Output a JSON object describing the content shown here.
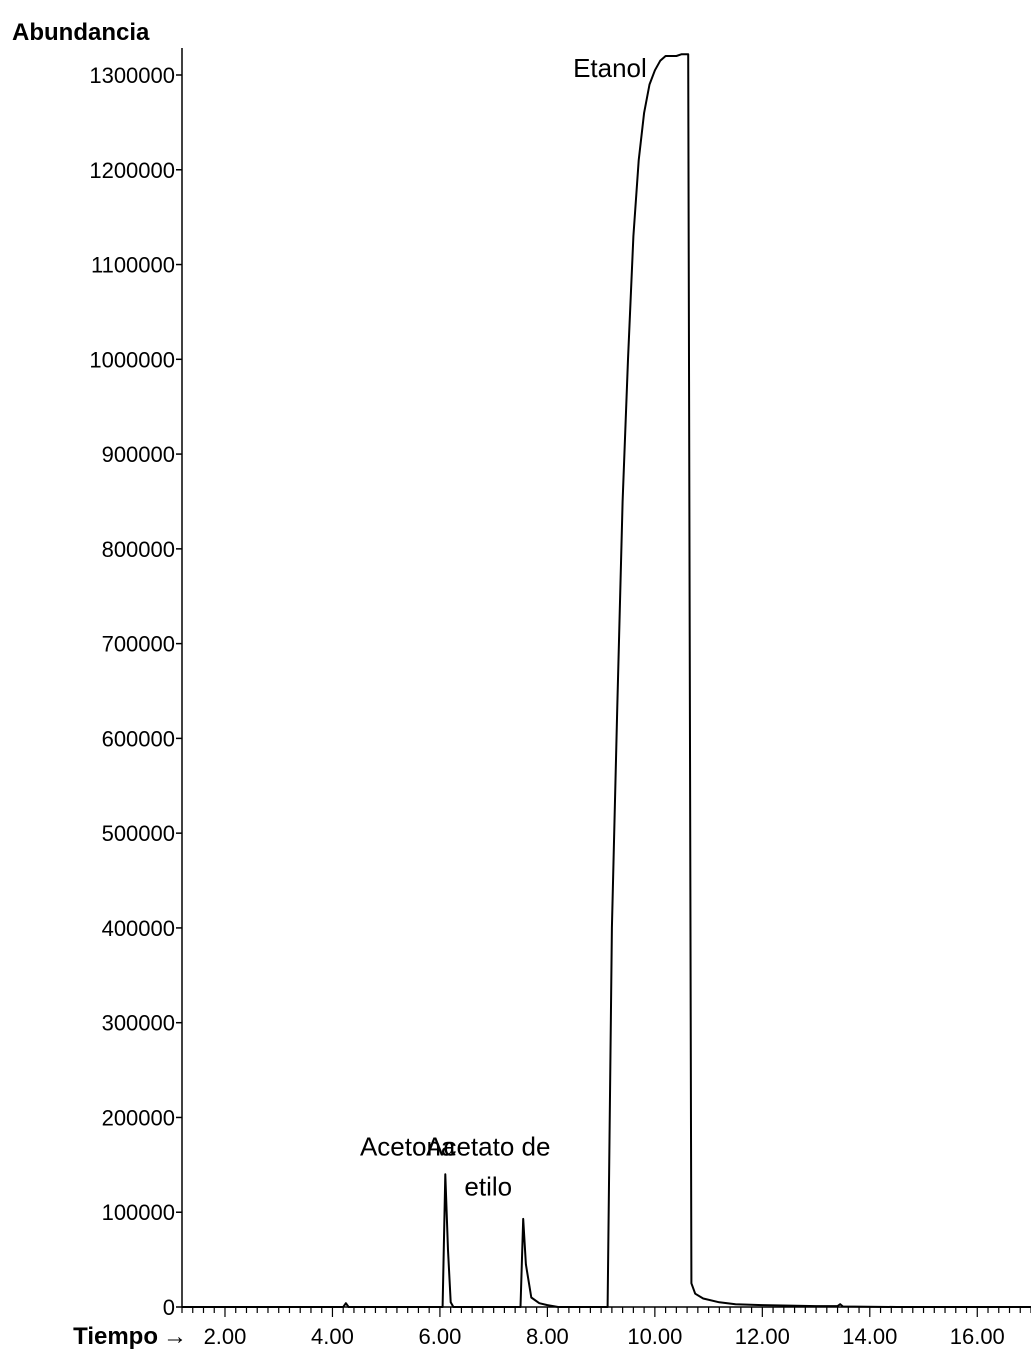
{
  "chart_data": {
    "type": "line",
    "ylabel": "Abundancia",
    "xlabel": "Tiempo",
    "xlabel_arrow": "→",
    "xlim": [
      1.2,
      17.0
    ],
    "ylim": [
      0,
      1300000
    ],
    "x_ticks": [
      2.0,
      4.0,
      6.0,
      8.0,
      10.0,
      12.0,
      14.0,
      16.0
    ],
    "x_tick_labels": [
      "2.00",
      "4.00",
      "6.00",
      "8.00",
      "10.00",
      "12.00",
      "14.00",
      "16.00"
    ],
    "y_ticks": [
      0,
      100000,
      200000,
      300000,
      400000,
      500000,
      600000,
      700000,
      800000,
      900000,
      1000000,
      1100000,
      1200000,
      1300000
    ],
    "y_tick_labels": [
      "0",
      "100000",
      "200000",
      "300000",
      "400000",
      "500000",
      "600000",
      "700000",
      "800000",
      "900000",
      "1000000",
      "1100000",
      "1200000",
      "1300000"
    ],
    "grid": false,
    "series": [
      {
        "color": "#000000",
        "x": [
          1.2,
          4.2,
          4.25,
          4.3,
          6.05,
          6.1,
          6.15,
          6.2,
          6.25,
          7.5,
          7.55,
          7.6,
          7.7,
          7.85,
          8.0,
          8.2,
          9.12,
          9.2,
          9.3,
          9.4,
          9.5,
          9.6,
          9.7,
          9.8,
          9.9,
          10.0,
          10.1,
          10.2,
          10.3,
          10.4,
          10.5,
          10.62,
          10.68,
          10.75,
          10.9,
          11.2,
          11.5,
          12.0,
          13.0,
          13.4,
          13.45,
          13.5,
          14.5,
          17.0
        ],
        "y": [
          0,
          0,
          4000,
          0,
          0,
          140000,
          60000,
          5000,
          0,
          0,
          93000,
          45000,
          10000,
          4000,
          2000,
          0,
          0,
          400000,
          630000,
          850000,
          1000000,
          1130000,
          1210000,
          1260000,
          1290000,
          1305000,
          1315000,
          1320000,
          1320000,
          1320000,
          1322000,
          1322000,
          25000,
          14000,
          9000,
          5000,
          3000,
          2000,
          1000,
          1000,
          3000,
          500,
          0,
          0
        ]
      }
    ],
    "annotations": [
      {
        "lines": [
          "Etanol"
        ],
        "x": 9.85,
        "y": 1298000,
        "anchor": "end"
      },
      {
        "lines": [
          "Acetona"
        ],
        "x": 5.4,
        "y": 160000,
        "anchor": "middle"
      },
      {
        "lines": [
          "Acetato de",
          "etilo"
        ],
        "x": 6.9,
        "y": 160000,
        "anchor": "middle"
      }
    ]
  }
}
